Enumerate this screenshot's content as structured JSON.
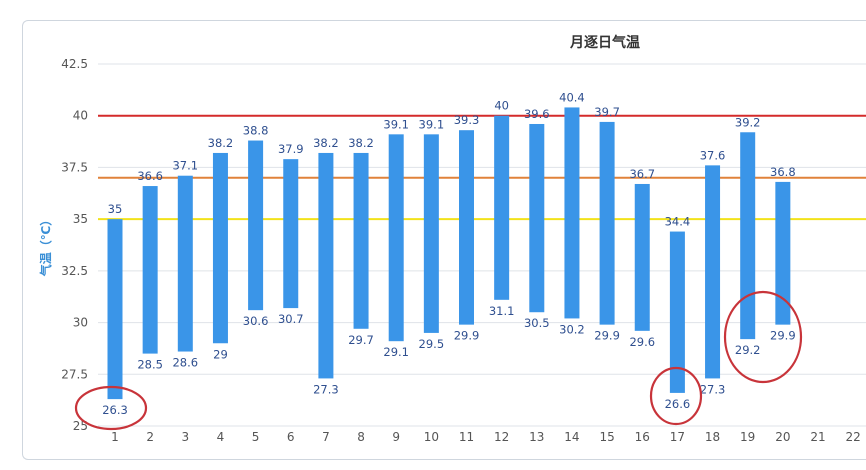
{
  "chart_data": {
    "type": "bar",
    "subtype": "range-column",
    "title": "月逐日气温",
    "ylabel": "气温（℃）",
    "xlabel": "",
    "ylim": [
      25,
      42.5
    ],
    "yticks": [
      "25",
      "27.5",
      "30",
      "32.5",
      "35",
      "37.5",
      "40",
      "42.5"
    ],
    "categories": [
      "1",
      "2",
      "3",
      "4",
      "5",
      "6",
      "7",
      "8",
      "9",
      "10",
      "11",
      "12",
      "13",
      "14",
      "15",
      "16",
      "17",
      "18",
      "19",
      "20",
      "21",
      "22"
    ],
    "high": [
      35,
      36.6,
      37.1,
      38.2,
      38.8,
      37.9,
      38.2,
      38.2,
      39.1,
      39.1,
      39.3,
      40,
      39.6,
      40.4,
      39.7,
      36.7,
      34.4,
      37.6,
      39.2,
      36.8,
      null,
      null
    ],
    "low": [
      26.3,
      28.5,
      28.6,
      29,
      30.6,
      30.7,
      27.3,
      29.7,
      29.1,
      29.5,
      29.9,
      31.1,
      30.5,
      30.2,
      29.9,
      29.6,
      26.6,
      27.3,
      29.2,
      29.9,
      null,
      null
    ],
    "high_labels": [
      "35",
      "36.6",
      "37.1",
      "38.2",
      "38.8",
      "37.9",
      "38.2",
      "38.2",
      "39.1",
      "39.1",
      "39.3",
      "40",
      "39.6",
      "40.4",
      "39.7",
      "36.7",
      "34.4",
      "37.6",
      "39.2",
      "36.8"
    ],
    "low_labels": [
      "26.3",
      "28.5",
      "28.6",
      "29",
      "30.6",
      "30.7",
      "27.3",
      "29.7",
      "29.1",
      "29.5",
      "29.9",
      "31.1",
      "30.5",
      "30.2",
      "29.9",
      "29.6",
      "26.6",
      "27.3",
      "29.2",
      "29.9"
    ],
    "reference_lines": [
      {
        "value": 40,
        "color": "#d42a2a"
      },
      {
        "value": 37,
        "color": "#e0823a"
      },
      {
        "value": 35,
        "color": "#f2e21a"
      }
    ],
    "highlight_circles": [
      {
        "label": "26.3"
      },
      {
        "label": "26.6"
      },
      {
        "label": "29.2"
      },
      {
        "label": "29.9"
      }
    ],
    "grid": true,
    "legend": "none",
    "colors": {
      "bar": "#3a95e8",
      "grid": "#dfe3e8",
      "circle": "#c8343a"
    }
  }
}
